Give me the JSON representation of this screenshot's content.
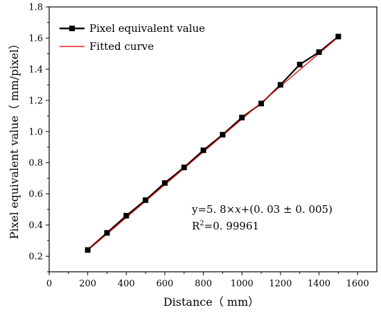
{
  "chart_data": {
    "type": "line",
    "xlabel": "Distance（ mm）",
    "ylabel": "Pixel equivalent value（ mm/pixel）",
    "xlim": [
      0,
      1700
    ],
    "ylim": [
      0.1,
      1.8
    ],
    "xticks": [
      0,
      200,
      400,
      600,
      800,
      1000,
      1200,
      1400,
      1600
    ],
    "xtick_labels": [
      "0",
      "200",
      "400",
      "600",
      "800",
      "1000",
      "1200",
      "1400",
      "1600"
    ],
    "yticks": [
      0.2,
      0.4,
      0.6,
      0.8,
      1.0,
      1.2,
      1.4,
      1.6,
      1.8
    ],
    "ytick_labels": [
      "0.2",
      "0.4",
      "0.6",
      "0.8",
      "1.0",
      "1.2",
      "1.4",
      "1.6",
      "1.8"
    ],
    "grid": false,
    "legend_position": "top-left",
    "series": [
      {
        "name": "Pixel equivalent value",
        "color": "#000000",
        "marker": "square",
        "x": [
          200,
          300,
          400,
          500,
          600,
          700,
          800,
          900,
          1000,
          1100,
          1200,
          1300,
          1400,
          1500
        ],
        "y": [
          0.24,
          0.35,
          0.46,
          0.56,
          0.67,
          0.77,
          0.88,
          0.98,
          1.09,
          1.18,
          1.3,
          1.43,
          1.51,
          1.61
        ]
      },
      {
        "name": "Fitted curve",
        "color": "#e02020",
        "marker": "none",
        "x": [
          200,
          1500
        ],
        "y": [
          0.237,
          1.607
        ]
      }
    ],
    "annotations": {
      "equation_prefix": "y=5. 8×",
      "equation_var": "x",
      "equation_suffix": "+(0. 03  ±  0. 005)",
      "r2_base": "R",
      "r2_exp": "2",
      "r2_value": "=0. 99961"
    }
  }
}
